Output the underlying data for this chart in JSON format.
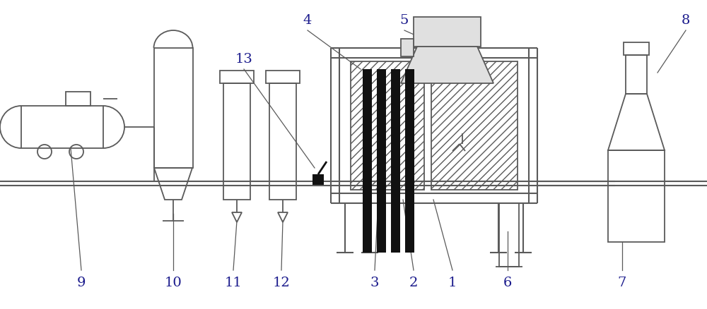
{
  "bg_color": "#ffffff",
  "lc": "#5a5a5a",
  "dc": "#111111",
  "label_color": "#1a1a8c",
  "fig_width": 10.0,
  "fig_height": 4.39,
  "dpi": 100
}
